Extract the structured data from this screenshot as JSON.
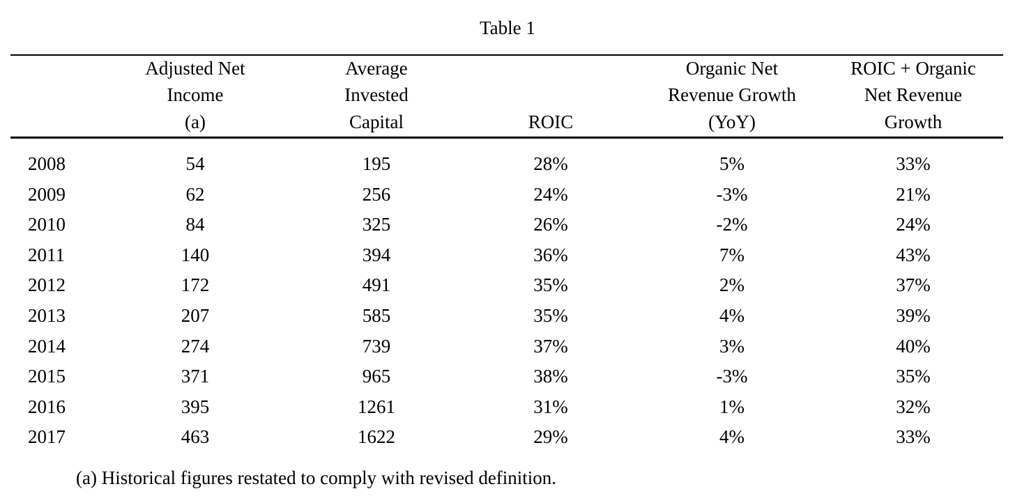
{
  "caption": "Table 1",
  "headers": {
    "c1": [
      "Adjusted Net",
      "Income",
      "(a)"
    ],
    "c2": [
      "Average",
      "Invested",
      "Capital"
    ],
    "c3": [
      "ROIC"
    ],
    "c4": [
      "Organic Net",
      "Revenue Growth",
      "(YoY)"
    ],
    "c5": [
      "ROIC + Organic",
      "Net Revenue",
      "Growth"
    ]
  },
  "rows": [
    {
      "year": "2008",
      "c1": "54",
      "c2": "195",
      "c3": "28%",
      "c4": "5%",
      "c5": "33%"
    },
    {
      "year": "2009",
      "c1": "62",
      "c2": "256",
      "c3": "24%",
      "c4": "-3%",
      "c5": "21%"
    },
    {
      "year": "2010",
      "c1": "84",
      "c2": "325",
      "c3": "26%",
      "c4": "-2%",
      "c5": "24%"
    },
    {
      "year": "2011",
      "c1": "140",
      "c2": "394",
      "c3": "36%",
      "c4": "7%",
      "c5": "43%"
    },
    {
      "year": "2012",
      "c1": "172",
      "c2": "491",
      "c3": "35%",
      "c4": "2%",
      "c5": "37%"
    },
    {
      "year": "2013",
      "c1": "207",
      "c2": "585",
      "c3": "35%",
      "c4": "4%",
      "c5": "39%"
    },
    {
      "year": "2014",
      "c1": "274",
      "c2": "739",
      "c3": "37%",
      "c4": "3%",
      "c5": "40%"
    },
    {
      "year": "2015",
      "c1": "371",
      "c2": "965",
      "c3": "38%",
      "c4": "-3%",
      "c5": "35%"
    },
    {
      "year": "2016",
      "c1": "395",
      "c2": "1261",
      "c3": "31%",
      "c4": "1%",
      "c5": "32%"
    },
    {
      "year": "2017",
      "c1": "463",
      "c2": "1622",
      "c3": "29%",
      "c4": "4%",
      "c5": "33%"
    }
  ],
  "footnote": "(a) Historical figures restated to comply with revised definition."
}
